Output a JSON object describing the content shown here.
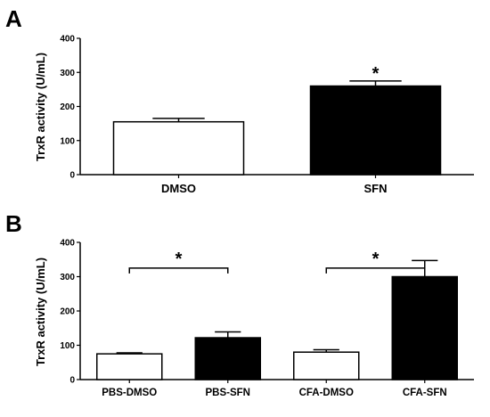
{
  "chart_data": [
    {
      "panel": "A",
      "type": "bar",
      "title": "",
      "xlabel": "",
      "ylabel": "TrxR activity (U/mL)",
      "ylim": [
        0,
        400
      ],
      "yticks": [
        0,
        100,
        200,
        300,
        400
      ],
      "categories": [
        "DMSO",
        "SFN"
      ],
      "values": [
        155,
        260
      ],
      "errors": [
        10,
        15
      ],
      "fills": [
        "#ffffff",
        "#000000"
      ],
      "significance": [
        {
          "label": "*",
          "target": "SFN",
          "bracket": false
        }
      ],
      "grid": false
    },
    {
      "panel": "B",
      "type": "bar",
      "title": "",
      "xlabel": "",
      "ylabel": "TrxR activity (U/mL)",
      "ylim": [
        0,
        400
      ],
      "yticks": [
        0,
        100,
        200,
        300,
        400
      ],
      "categories": [
        "PBS-DMSO",
        "PBS-SFN",
        "CFA-DMSO",
        "CFA-SFN"
      ],
      "values": [
        75,
        122,
        80,
        300
      ],
      "errors": [
        3,
        17,
        7,
        47
      ],
      "fills": [
        "#ffffff",
        "#000000",
        "#ffffff",
        "#000000"
      ],
      "significance": [
        {
          "label": "*",
          "from": "PBS-DMSO",
          "to": "PBS-SFN",
          "bracket": true,
          "level": 325
        },
        {
          "label": "*",
          "from": "CFA-DMSO",
          "to": "CFA-SFN",
          "bracket": true,
          "level": 325
        }
      ],
      "grid": false
    }
  ]
}
